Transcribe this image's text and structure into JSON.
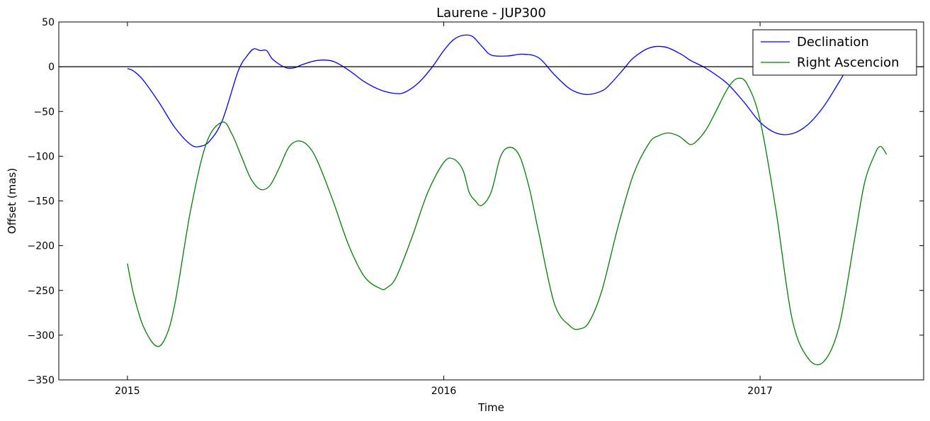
{
  "chart_data": {
    "type": "line",
    "title": "Laurene - JUP300",
    "xlabel": "Time",
    "ylabel": "Offset (mas)",
    "xlim": [
      2014.783,
      2017.517
    ],
    "ylim": [
      -350,
      50
    ],
    "xticks": [
      2015,
      2016,
      2017
    ],
    "xtick_labels": [
      "2015",
      "2016",
      "2017"
    ],
    "yticks": [
      50,
      0,
      -50,
      -100,
      -150,
      -200,
      -250,
      -300,
      -350
    ],
    "ytick_labels": [
      "50",
      "0",
      "−50",
      "−100",
      "−150",
      "−200",
      "−250",
      "−300",
      "−350"
    ],
    "hline": 0,
    "hline_color": "#000000",
    "legend_position": "top-right",
    "series": [
      {
        "name": "Declination",
        "color": "#0000ff",
        "x": [
          2015.0,
          2015.02,
          2015.05,
          2015.1,
          2015.15,
          2015.2,
          2015.23,
          2015.26,
          2015.3,
          2015.35,
          2015.38,
          2015.4,
          2015.42,
          2015.44,
          2015.46,
          2015.5,
          2015.53,
          2015.55,
          2015.6,
          2015.65,
          2015.7,
          2015.75,
          2015.8,
          2015.85,
          2015.88,
          2015.92,
          2015.96,
          2016.0,
          2016.03,
          2016.06,
          2016.09,
          2016.12,
          2016.15,
          2016.2,
          2016.25,
          2016.3,
          2016.35,
          2016.4,
          2016.45,
          2016.5,
          2016.53,
          2016.57,
          2016.6,
          2016.65,
          2016.7,
          2016.75,
          2016.78,
          2016.82,
          2016.86,
          2016.9,
          2016.95,
          2017.0,
          2017.05,
          2017.1,
          2017.15,
          2017.2,
          2017.25,
          2017.28,
          2017.31,
          2017.34,
          2017.37,
          2017.4
        ],
        "y": [
          -2,
          -5,
          -15,
          -40,
          -68,
          -87,
          -89,
          -83,
          -60,
          -5,
          13,
          20,
          18,
          18,
          8,
          -1,
          -1,
          2,
          7,
          6,
          -4,
          -17,
          -26,
          -30,
          -28,
          -18,
          -2,
          18,
          30,
          35,
          34,
          23,
          13,
          12,
          14,
          10,
          -9,
          -25,
          -31,
          -27,
          -18,
          -2,
          10,
          21,
          22,
          14,
          7,
          0,
          -9,
          -20,
          -40,
          -62,
          -74,
          -75,
          -65,
          -45,
          -17,
          0,
          10,
          18,
          22,
          22
        ]
      },
      {
        "name": "Right Ascencion",
        "color": "#008000",
        "x": [
          2015.0,
          2015.02,
          2015.05,
          2015.09,
          2015.12,
          2015.15,
          2015.2,
          2015.25,
          2015.3,
          2015.33,
          2015.36,
          2015.39,
          2015.42,
          2015.45,
          2015.48,
          2015.51,
          2015.54,
          2015.57,
          2015.6,
          2015.65,
          2015.7,
          2015.75,
          2015.8,
          2015.82,
          2015.85,
          2015.9,
          2015.95,
          2016.0,
          2016.03,
          2016.06,
          2016.08,
          2016.1,
          2016.12,
          2016.15,
          2016.18,
          2016.21,
          2016.24,
          2016.27,
          2016.3,
          2016.35,
          2016.4,
          2016.43,
          2016.46,
          2016.5,
          2016.55,
          2016.6,
          2016.65,
          2016.68,
          2016.71,
          2016.74,
          2016.76,
          2016.78,
          2016.8,
          2016.83,
          2016.86,
          2016.9,
          2016.93,
          2016.96,
          2017.0,
          2017.05,
          2017.1,
          2017.15,
          2017.2,
          2017.25,
          2017.3,
          2017.33,
          2017.36,
          2017.38,
          2017.4
        ],
        "y": [
          -220,
          -255,
          -290,
          -312,
          -303,
          -265,
          -160,
          -85,
          -62,
          -75,
          -100,
          -125,
          -137,
          -133,
          -113,
          -90,
          -83,
          -88,
          -105,
          -150,
          -200,
          -235,
          -248,
          -247,
          -235,
          -190,
          -140,
          -107,
          -103,
          -115,
          -140,
          -150,
          -155,
          -140,
          -100,
          -90,
          -100,
          -135,
          -185,
          -265,
          -290,
          -293,
          -285,
          -250,
          -180,
          -120,
          -85,
          -77,
          -74,
          -77,
          -82,
          -87,
          -83,
          -70,
          -50,
          -23,
          -13,
          -20,
          -60,
          -160,
          -280,
          -325,
          -330,
          -290,
          -190,
          -130,
          -100,
          -89,
          -98
        ]
      }
    ]
  }
}
